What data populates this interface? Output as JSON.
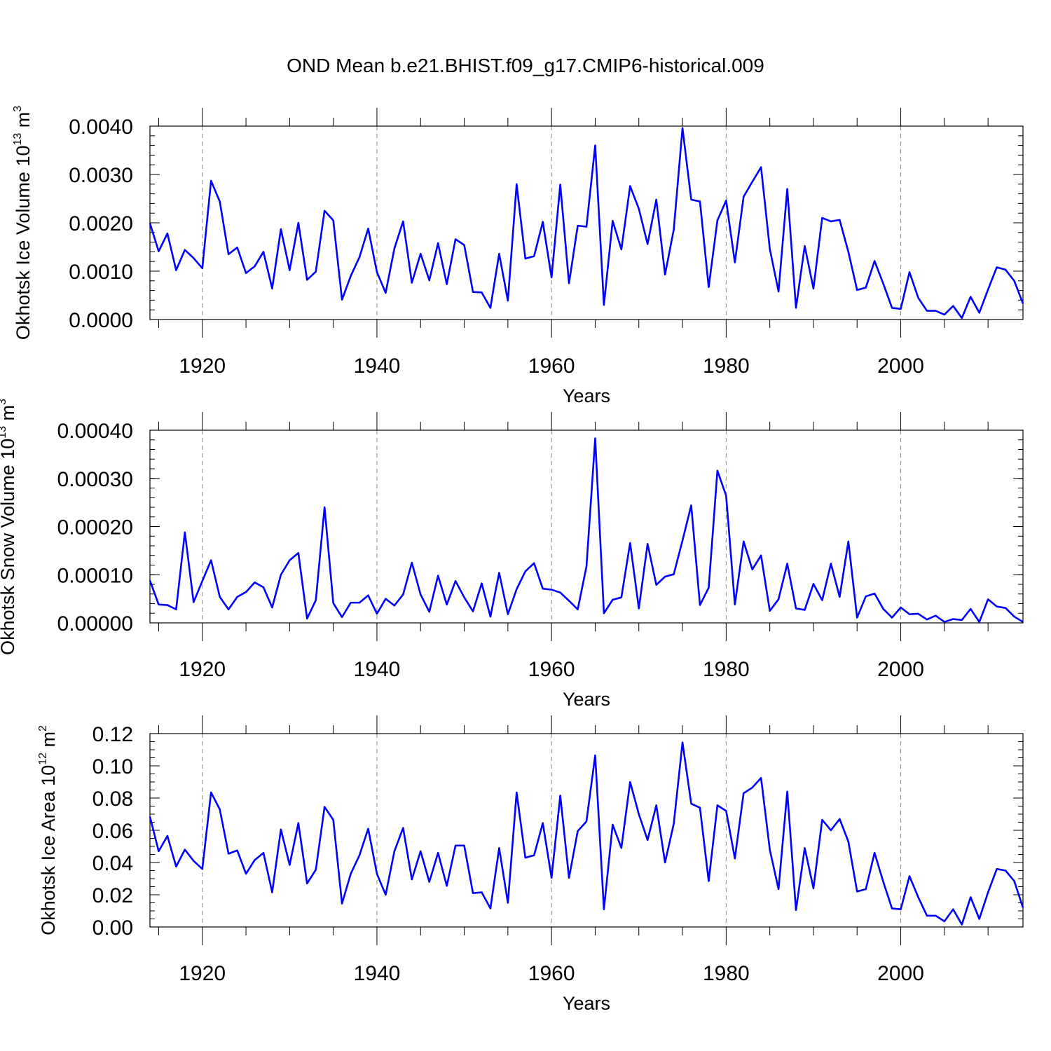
{
  "title": "OND Mean b.e21.BHIST.f09_g17.CMIP6-historical.009",
  "x_start_year": 1914,
  "colors": {
    "line": "#0000ff",
    "grid": "#888888",
    "axis": "#000000"
  },
  "chart_data": [
    {
      "type": "line",
      "name": "Okhotsk Ice Volume",
      "ylabel": "Okhotsk Ice Volume 10",
      "ylabel_exp": "13",
      "ylabel_unit": " m",
      "ylabel_unit_exp": "3",
      "xlabel": "Years",
      "xlim": [
        1914,
        2014
      ],
      "ylim": [
        0,
        0.004
      ],
      "x_ticks": [
        1920,
        1940,
        1960,
        1980,
        2000
      ],
      "x_tick_labels": [
        "1920",
        "1940",
        "1960",
        "1980",
        "2000"
      ],
      "y_ticks": [
        0,
        0.001,
        0.002,
        0.003,
        0.004
      ],
      "y_tick_labels": [
        "0.0000",
        "0.0010",
        "0.0020",
        "0.0030",
        "0.0040"
      ],
      "y_minor_step": 0.0002,
      "values": [
        0.00199,
        0.00141,
        0.00178,
        0.00102,
        0.00144,
        0.00127,
        0.00106,
        0.00287,
        0.00244,
        0.00135,
        0.00149,
        0.00096,
        0.0011,
        0.0014,
        0.00064,
        0.00187,
        0.00102,
        0.002,
        0.00082,
        0.00099,
        0.00225,
        0.00205,
        0.00041,
        0.0009,
        0.00129,
        0.00188,
        0.00098,
        0.00055,
        0.00147,
        0.00203,
        0.00076,
        0.00136,
        0.00081,
        0.00158,
        0.00073,
        0.00166,
        0.00154,
        0.00057,
        0.00056,
        0.00024,
        0.00136,
        0.00039,
        0.0028,
        0.00126,
        0.00131,
        0.00202,
        0.00087,
        0.00279,
        0.00075,
        0.00194,
        0.00192,
        0.0036,
        0.0003,
        0.00204,
        0.00145,
        0.00276,
        0.00229,
        0.00156,
        0.00248,
        0.00093,
        0.00186,
        0.00396,
        0.00248,
        0.00244,
        0.00067,
        0.00205,
        0.00246,
        0.00118,
        0.00254,
        0.00285,
        0.00315,
        0.00146,
        0.00058,
        0.0027,
        0.00024,
        0.00152,
        0.00064,
        0.0021,
        0.00203,
        0.00206,
        0.0014,
        0.00061,
        0.00066,
        0.00121,
        0.00074,
        0.00024,
        0.00022,
        0.00098,
        0.00045,
        0.00018,
        0.00018,
        0.0001,
        0.00028,
        3e-05,
        0.00047,
        0.00014,
        0.00062,
        0.00108,
        0.00103,
        0.0008,
        0.00033
      ]
    },
    {
      "type": "line",
      "name": "Okhotsk Snow Volume",
      "ylabel": "Okhotsk Snow Volume 10",
      "ylabel_exp": "13",
      "ylabel_unit": " m",
      "ylabel_unit_exp": "3",
      "xlabel": "Years",
      "xlim": [
        1914,
        2014
      ],
      "ylim": [
        0,
        0.0004
      ],
      "x_ticks": [
        1920,
        1940,
        1960,
        1980,
        2000
      ],
      "x_tick_labels": [
        "1920",
        "1940",
        "1960",
        "1980",
        "2000"
      ],
      "y_ticks": [
        0,
        0.0001,
        0.0002,
        0.0003,
        0.0004
      ],
      "y_tick_labels": [
        "0.00000",
        "0.00010",
        "0.00020",
        "0.00030",
        "0.00040"
      ],
      "y_minor_step": 2e-05,
      "values": [
        8.8e-05,
        3.8e-05,
        3.7e-05,
        2.8e-05,
        0.000188,
        4.3e-05,
        8.7e-05,
        0.00013,
        5.4e-05,
        2.8e-05,
        5.4e-05,
        6.4e-05,
        8.4e-05,
        7.4e-05,
        3.2e-05,
        0.0001,
        0.00013,
        0.000145,
        9e-06,
        4.7e-05,
        0.00024,
        4.1e-05,
        1.2e-05,
        4.2e-05,
        4.2e-05,
        5.7e-05,
        1.9e-05,
        5e-05,
        3.6e-05,
        5.9e-05,
        0.000125,
        5.9e-05,
        2.3e-05,
        9.8e-05,
        3.8e-05,
        8.7e-05,
        5.3e-05,
        2.4e-05,
        8.2e-05,
        1.3e-05,
        0.000104,
        1.8e-05,
        7e-05,
        0.000107,
        0.000124,
        7.1e-05,
        6.9e-05,
        6.3e-05,
        4.6e-05,
        2.8e-05,
        0.000117,
        0.000383,
        2e-05,
        4.8e-05,
        5.3e-05,
        0.000166,
        3e-05,
        0.000164,
        7.9e-05,
        9.6e-05,
        0.000101,
        0.000171,
        0.000244,
        3.7e-05,
        7.3e-05,
        0.000316,
        0.000264,
        3.8e-05,
        0.000169,
        0.000111,
        0.00014,
        2.5e-05,
        4.9e-05,
        0.000123,
        3e-05,
        2.7e-05,
        8.1e-05,
        4.7e-05,
        0.000123,
        5.4e-05,
        0.000169,
        1.1e-05,
        5.5e-05,
        6.1e-05,
        2.9e-05,
        1.1e-05,
        3.2e-05,
        1.8e-05,
        1.9e-05,
        7e-06,
        1.5e-05,
        2e-06,
        8e-06,
        6e-06,
        2.9e-05,
        2e-06,
        4.9e-05,
        3.4e-05,
        3.1e-05,
        1.3e-05,
        2e-06
      ]
    },
    {
      "type": "line",
      "name": "Okhotsk Ice Area",
      "ylabel": "Okhotsk Ice Area 10",
      "ylabel_exp": "12",
      "ylabel_unit": " m",
      "ylabel_unit_exp": "2",
      "xlabel": "Years",
      "xlim": [
        1914,
        2014
      ],
      "ylim": [
        0,
        0.12
      ],
      "x_ticks": [
        1920,
        1940,
        1960,
        1980,
        2000
      ],
      "x_tick_labels": [
        "1920",
        "1940",
        "1960",
        "1980",
        "2000"
      ],
      "y_ticks": [
        0,
        0.02,
        0.04,
        0.06,
        0.08,
        0.1,
        0.12
      ],
      "y_tick_labels": [
        "0.00",
        "0.02",
        "0.04",
        "0.06",
        "0.08",
        "0.10",
        "0.12"
      ],
      "y_minor_step": 0.005,
      "values": [
        0.0685,
        0.047,
        0.0565,
        0.0375,
        0.048,
        0.041,
        0.036,
        0.0835,
        0.073,
        0.0455,
        0.0475,
        0.033,
        0.0415,
        0.046,
        0.0215,
        0.0605,
        0.0385,
        0.0645,
        0.027,
        0.0355,
        0.0745,
        0.0665,
        0.0145,
        0.033,
        0.0445,
        0.061,
        0.033,
        0.02,
        0.047,
        0.0615,
        0.0295,
        0.047,
        0.028,
        0.046,
        0.0255,
        0.0505,
        0.0505,
        0.021,
        0.0215,
        0.0115,
        0.049,
        0.015,
        0.0835,
        0.043,
        0.0445,
        0.0645,
        0.0305,
        0.0815,
        0.0305,
        0.0595,
        0.0655,
        0.1065,
        0.011,
        0.0635,
        0.049,
        0.09,
        0.07,
        0.054,
        0.0755,
        0.04,
        0.064,
        0.1145,
        0.0765,
        0.074,
        0.0285,
        0.0755,
        0.072,
        0.0425,
        0.083,
        0.0865,
        0.0925,
        0.048,
        0.0235,
        0.084,
        0.0105,
        0.049,
        0.024,
        0.0665,
        0.06,
        0.067,
        0.053,
        0.022,
        0.0235,
        0.046,
        0.028,
        0.0115,
        0.011,
        0.0315,
        0.0185,
        0.007,
        0.007,
        0.0035,
        0.011,
        0.0015,
        0.0185,
        0.005,
        0.0215,
        0.036,
        0.035,
        0.0285,
        0.012
      ]
    }
  ]
}
